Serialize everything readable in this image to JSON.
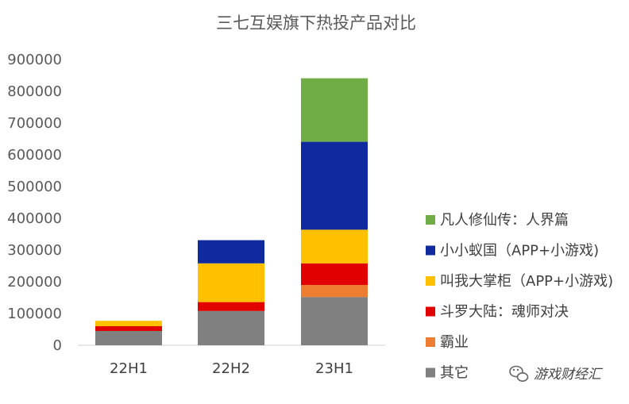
{
  "chart_data": {
    "type": "bar",
    "stacked": true,
    "title": "三七互娱旗下热投产品对比",
    "xlabel": "",
    "ylabel": "",
    "ylim": [
      0,
      900000
    ],
    "yticks": [
      "0",
      "100000",
      "200000",
      "300000",
      "400000",
      "500000",
      "600000",
      "700000",
      "800000",
      "900000"
    ],
    "categories": [
      "22H1",
      "22H2",
      "23H1"
    ],
    "series": [
      {
        "name": "其它",
        "color": "#808080",
        "values": [
          45000,
          108000,
          152000
        ]
      },
      {
        "name": "霸业",
        "color": "#ED7D31",
        "values": [
          0,
          0,
          38000
        ]
      },
      {
        "name": "斗罗大陆：魂师对决",
        "color": "#E00000",
        "values": [
          15000,
          28000,
          68000
        ]
      },
      {
        "name": "叫我大掌柜（APP+小游戏)",
        "color": "#FFC000",
        "values": [
          17000,
          122000,
          106000
        ]
      },
      {
        "name": "小小蚁国（APP+小游戏)",
        "color": "#0E2A9E",
        "values": [
          0,
          73000,
          277000
        ]
      },
      {
        "name": "凡人修仙传：人界篇",
        "color": "#70AD47",
        "values": [
          0,
          0,
          200000
        ]
      }
    ],
    "legend_position": "right"
  },
  "watermark": {
    "text": "游戏财经汇",
    "icon": "wechat-icon"
  }
}
